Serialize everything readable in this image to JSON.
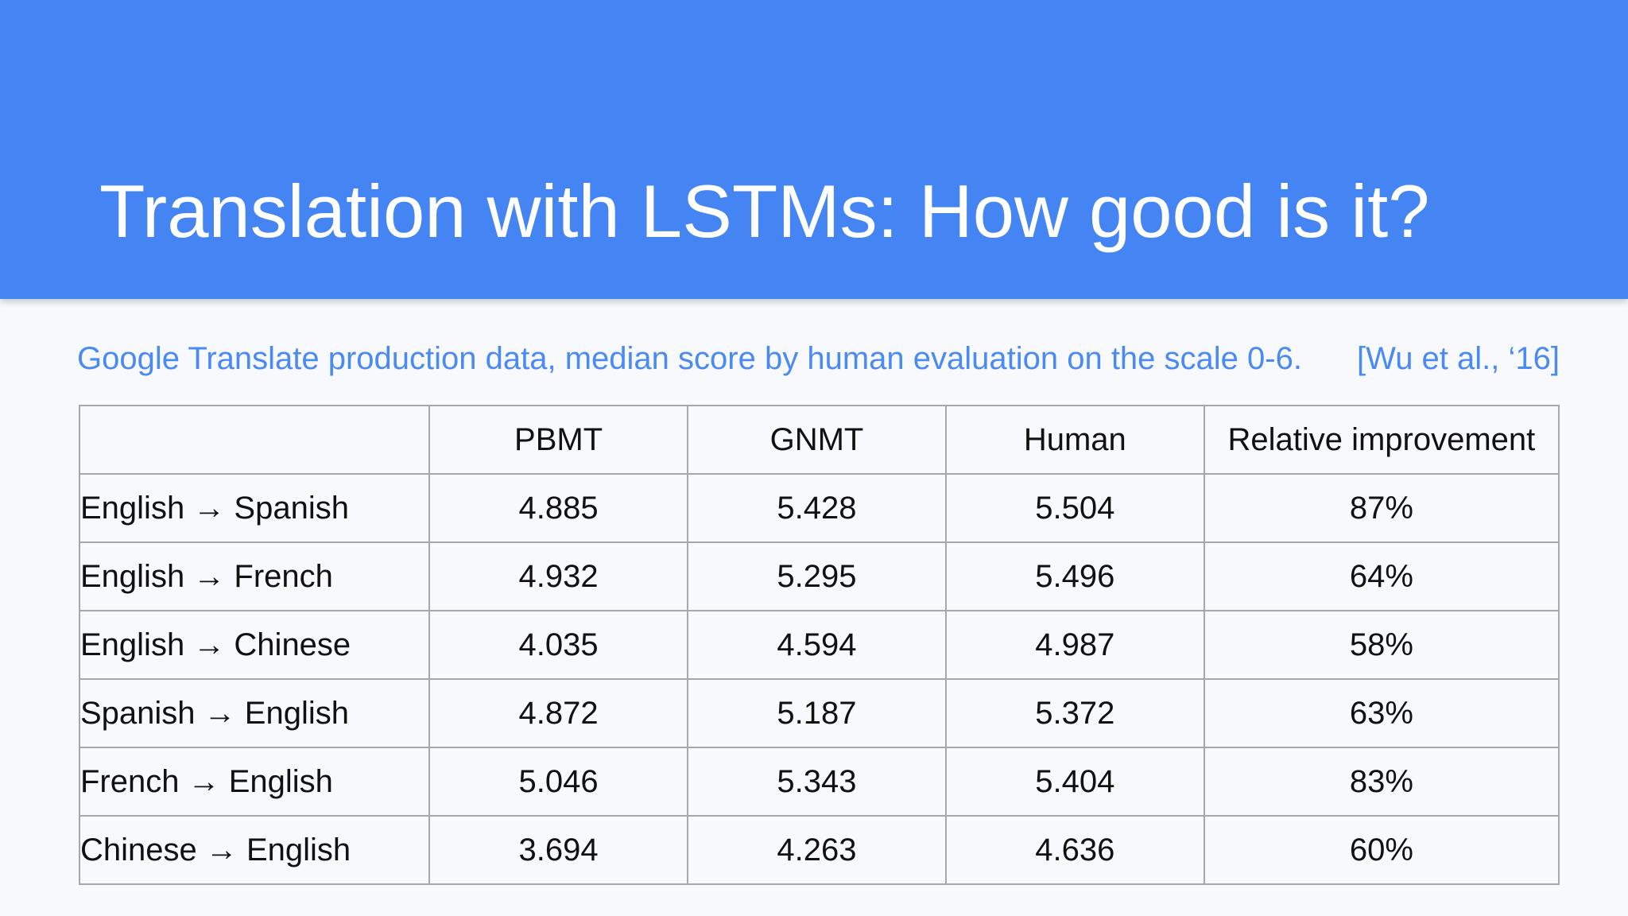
{
  "slide": {
    "title": "Translation with LSTMs: How good is it?",
    "subtitle": "Google Translate production data, median score by human evaluation on the scale 0-6.",
    "citation": "[Wu et al., ‘16]"
  },
  "colors": {
    "header_background": "#4584f3",
    "accent_text": "#4a8af4",
    "page_background": "#f8f9fc"
  },
  "table": {
    "headers": [
      "",
      "PBMT",
      "GNMT",
      "Human",
      "Relative improvement"
    ],
    "rows": [
      {
        "label": "English → Spanish",
        "pbmt": "4.885",
        "gnmt": "5.428",
        "human": "5.504",
        "relative": "87%"
      },
      {
        "label": "English → French",
        "pbmt": "4.932",
        "gnmt": "5.295",
        "human": "5.496",
        "relative": "64%"
      },
      {
        "label": "English → Chinese",
        "pbmt": "4.035",
        "gnmt": "4.594",
        "human": "4.987",
        "relative": "58%"
      },
      {
        "label": "Spanish → English",
        "pbmt": "4.872",
        "gnmt": "5.187",
        "human": "5.372",
        "relative": "63%"
      },
      {
        "label": "French → English",
        "pbmt": "5.046",
        "gnmt": "5.343",
        "human": "5.404",
        "relative": "83%"
      },
      {
        "label": "Chinese → English",
        "pbmt": "3.694",
        "gnmt": "4.263",
        "human": "4.636",
        "relative": "60%"
      }
    ]
  }
}
